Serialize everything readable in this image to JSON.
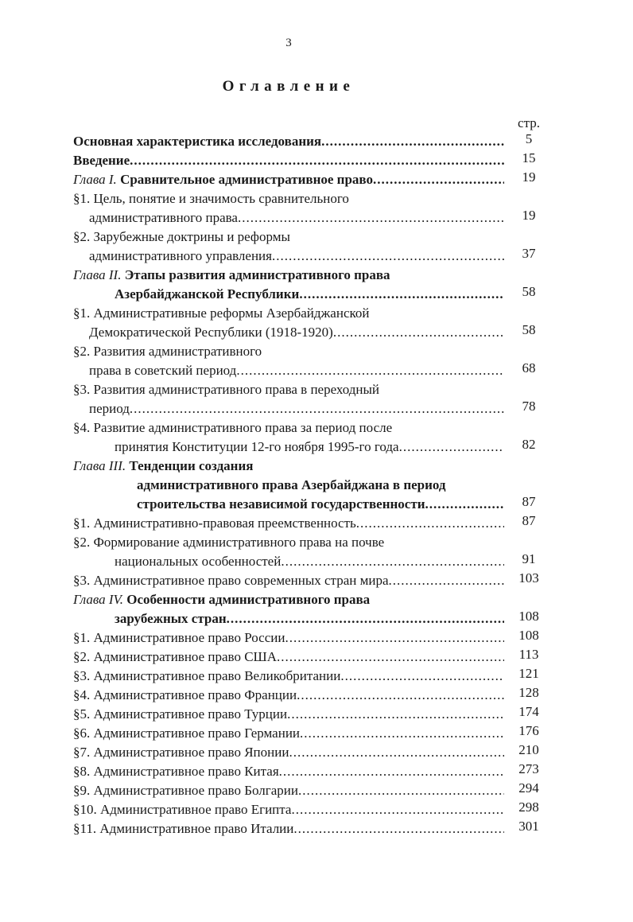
{
  "colors": {
    "ink": "#1a1a1a",
    "paper": "#ffffff"
  },
  "page": {
    "folio": "3",
    "title": "Оглавление",
    "column_header": "стр."
  },
  "toc": {
    "lines": [
      {
        "indent": 0,
        "segments": [
          {
            "t": "Основная характеристика исследования",
            "s": "bold"
          }
        ],
        "leader": true,
        "page": "5"
      },
      {
        "indent": 0,
        "segments": [
          {
            "t": "Введение",
            "s": "bold"
          }
        ],
        "leader": true,
        "page": "15"
      },
      {
        "indent": 0,
        "segments": [
          {
            "t": "Глава I. ",
            "s": "italic"
          },
          {
            "t": "Сравнительное административное право",
            "s": "bold"
          }
        ],
        "leader": true,
        "page": "19"
      },
      {
        "indent": 0,
        "segments": [
          {
            "t": "§1. Цель, понятие и значимость сравнительного",
            "s": "normal"
          }
        ],
        "leader": false
      },
      {
        "indent": 1,
        "segments": [
          {
            "t": "административного права",
            "s": "normal"
          }
        ],
        "leader": true,
        "page": "19"
      },
      {
        "indent": 0,
        "segments": [
          {
            "t": "§2. Зарубежные доктрины и реформы",
            "s": "normal"
          }
        ],
        "leader": false
      },
      {
        "indent": 1,
        "segments": [
          {
            "t": "административного управления",
            "s": "normal"
          }
        ],
        "leader": true,
        "page": "37"
      },
      {
        "indent": 0,
        "segments": [
          {
            "t": "Глава II. ",
            "s": "italic"
          },
          {
            "t": "Этапы развития административного права",
            "s": "bold"
          }
        ],
        "leader": false
      },
      {
        "indent": 2,
        "segments": [
          {
            "t": "Азербайджанской Республики",
            "s": "bold"
          }
        ],
        "leader": true,
        "page": "58"
      },
      {
        "indent": 0,
        "segments": [
          {
            "t": "§1. Административные реформы Азербайджанской",
            "s": "normal"
          }
        ],
        "leader": false
      },
      {
        "indent": 1,
        "segments": [
          {
            "t": "Демократической Республики (1918-1920)",
            "s": "normal"
          }
        ],
        "leader": true,
        "page": "58"
      },
      {
        "indent": 0,
        "segments": [
          {
            "t": "§2. Развития административного",
            "s": "normal"
          }
        ],
        "leader": false
      },
      {
        "indent": 1,
        "segments": [
          {
            "t": "права в советский период",
            "s": "normal"
          }
        ],
        "leader": true,
        "page": "68"
      },
      {
        "indent": 0,
        "segments": [
          {
            "t": "§3. Развития административного права в переходный",
            "s": "normal"
          }
        ],
        "leader": false
      },
      {
        "indent": 1,
        "segments": [
          {
            "t": "период",
            "s": "normal"
          }
        ],
        "leader": true,
        "page": "78"
      },
      {
        "indent": 0,
        "segments": [
          {
            "t": "§4. Развитие административного права за период после",
            "s": "normal"
          }
        ],
        "leader": false
      },
      {
        "indent": 2,
        "segments": [
          {
            "t": "принятия Конституции 12-го ноября 1995-го года",
            "s": "normal"
          }
        ],
        "leader": true,
        "page": "82"
      },
      {
        "indent": 0,
        "segments": [
          {
            "t": "Глава III. ",
            "s": "italic"
          },
          {
            "t": "Тенденции создания",
            "s": "bold"
          }
        ],
        "leader": false
      },
      {
        "indent": 3,
        "segments": [
          {
            "t": "административного права Азербайджана в период",
            "s": "bold"
          }
        ],
        "leader": false
      },
      {
        "indent": 3,
        "segments": [
          {
            "t": "строительства независимой государственности",
            "s": "bold"
          }
        ],
        "leader": true,
        "page": "87"
      },
      {
        "indent": 0,
        "segments": [
          {
            "t": "§1. Административно-правовая преемственность",
            "s": "normal"
          }
        ],
        "leader": true,
        "page": "87"
      },
      {
        "indent": 0,
        "segments": [
          {
            "t": "§2. Формирование административного права на почве",
            "s": "normal"
          }
        ],
        "leader": false
      },
      {
        "indent": 2,
        "segments": [
          {
            "t": "национальных особенностей",
            "s": "normal"
          }
        ],
        "leader": true,
        "page": "91"
      },
      {
        "indent": 0,
        "segments": [
          {
            "t": "§3. Административное право современных стран мира",
            "s": "normal"
          }
        ],
        "leader": true,
        "page": "103"
      },
      {
        "indent": 0,
        "segments": [
          {
            "t": "Глава IV. ",
            "s": "italic"
          },
          {
            "t": "Особенности административного права",
            "s": "bold"
          }
        ],
        "leader": false
      },
      {
        "indent": 2,
        "segments": [
          {
            "t": "зарубежных стран ",
            "s": "bold"
          }
        ],
        "leader": true,
        "page": "108"
      },
      {
        "indent": 0,
        "segments": [
          {
            "t": "§1. Административное право России",
            "s": "normal"
          }
        ],
        "leader": true,
        "page": "108"
      },
      {
        "indent": 0,
        "segments": [
          {
            "t": "§2. Административное право США",
            "s": "normal"
          }
        ],
        "leader": true,
        "page": "113"
      },
      {
        "indent": 0,
        "segments": [
          {
            "t": "§3. Административное право Великобритании ",
            "s": "normal"
          }
        ],
        "leader": true,
        "page": "121"
      },
      {
        "indent": 0,
        "segments": [
          {
            "t": "§4. Административное право Франции",
            "s": "normal"
          }
        ],
        "leader": true,
        "page": "128"
      },
      {
        "indent": 0,
        "segments": [
          {
            "t": "§5. Административное право Турции",
            "s": "normal"
          }
        ],
        "leader": true,
        "page": "174"
      },
      {
        "indent": 0,
        "segments": [
          {
            "t": "§6. Административное право Германии",
            "s": "normal"
          }
        ],
        "leader": true,
        "page": "176"
      },
      {
        "indent": 0,
        "segments": [
          {
            "t": "§7. Административное право Японии",
            "s": "normal"
          }
        ],
        "leader": true,
        "page": "210"
      },
      {
        "indent": 0,
        "segments": [
          {
            "t": "§8. Административное право Китая",
            "s": "normal"
          }
        ],
        "leader": true,
        "page": "273"
      },
      {
        "indent": 0,
        "segments": [
          {
            "t": "§9. Административное право Болгарии",
            "s": "normal"
          }
        ],
        "leader": true,
        "page": "294"
      },
      {
        "indent": 0,
        "segments": [
          {
            "t": "§10. Административное право Египта",
            "s": "normal"
          }
        ],
        "leader": true,
        "page": "298"
      },
      {
        "indent": 0,
        "segments": [
          {
            "t": "§11. Административное право Италии",
            "s": "normal"
          }
        ],
        "leader": true,
        "page": "301"
      }
    ]
  }
}
